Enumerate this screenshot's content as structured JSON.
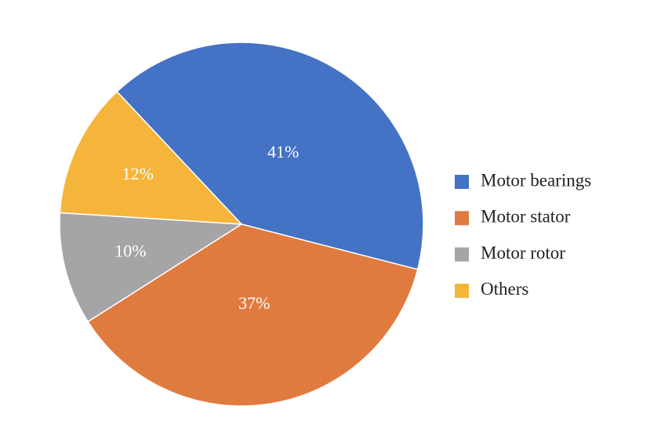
{
  "chart_data": {
    "type": "pie",
    "categories": [
      "Motor bearings",
      "Motor stator",
      "Motor rotor",
      "Others"
    ],
    "values": [
      41,
      37,
      10,
      12
    ],
    "value_labels": [
      "41%",
      "37%",
      "10%",
      "12%"
    ],
    "colors": [
      "#4472c4",
      "#e07b40",
      "#a5a5a8",
      "#f4b53a"
    ],
    "legend": "right"
  }
}
